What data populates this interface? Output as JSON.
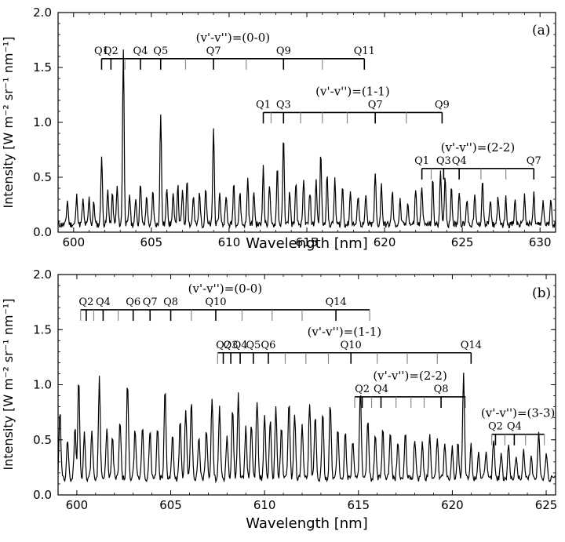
{
  "chart_data": [
    {
      "type": "line",
      "panel_label": "(a)",
      "xlabel": "Wavelength [nm]",
      "ylabel": "Intensity [W m⁻² sr⁻¹ nm⁻¹]",
      "xlim": [
        599,
        631
      ],
      "ylim": [
        0,
        2.0
      ],
      "x_ticks": [
        600,
        605,
        610,
        615,
        620,
        625,
        630
      ],
      "y_ticks": [
        0.0,
        0.5,
        1.0,
        1.5,
        2.0
      ],
      "y_tick_labels": [
        "0.0",
        "0.5",
        "1.0",
        "1.5",
        "2.0"
      ],
      "peaks": [
        [
          599.6,
          0.22
        ],
        [
          600.2,
          0.26
        ],
        [
          600.6,
          0.22
        ],
        [
          601.0,
          0.24
        ],
        [
          601.3,
          0.2
        ],
        [
          601.8,
          0.62
        ],
        [
          602.2,
          0.32
        ],
        [
          602.5,
          0.28
        ],
        [
          602.8,
          0.34
        ],
        [
          603.2,
          1.6
        ],
        [
          603.6,
          0.28
        ],
        [
          604.0,
          0.24
        ],
        [
          604.3,
          0.4
        ],
        [
          604.7,
          0.26
        ],
        [
          605.1,
          0.3
        ],
        [
          605.6,
          1.02
        ],
        [
          606.0,
          0.34
        ],
        [
          606.4,
          0.28
        ],
        [
          606.7,
          0.36
        ],
        [
          607.0,
          0.3
        ],
        [
          607.3,
          0.42
        ],
        [
          607.7,
          0.26
        ],
        [
          608.1,
          0.3
        ],
        [
          608.5,
          0.34
        ],
        [
          609.0,
          0.88
        ],
        [
          609.4,
          0.3
        ],
        [
          609.8,
          0.28
        ],
        [
          610.3,
          0.38
        ],
        [
          610.7,
          0.3
        ],
        [
          611.2,
          0.42
        ],
        [
          611.6,
          0.3
        ],
        [
          612.2,
          0.52
        ],
        [
          612.6,
          0.36
        ],
        [
          613.1,
          0.52
        ],
        [
          613.5,
          0.78
        ],
        [
          613.9,
          0.3
        ],
        [
          614.3,
          0.36
        ],
        [
          614.8,
          0.4
        ],
        [
          615.2,
          0.3
        ],
        [
          615.6,
          0.4
        ],
        [
          615.9,
          0.64
        ],
        [
          616.3,
          0.46
        ],
        [
          616.8,
          0.4
        ],
        [
          617.3,
          0.34
        ],
        [
          617.8,
          0.3
        ],
        [
          618.3,
          0.28
        ],
        [
          618.8,
          0.26
        ],
        [
          619.4,
          0.46
        ],
        [
          619.8,
          0.36
        ],
        [
          620.5,
          0.3
        ],
        [
          621.0,
          0.22
        ],
        [
          621.5,
          0.2
        ],
        [
          622.0,
          0.32
        ],
        [
          622.4,
          0.36
        ],
        [
          623.1,
          0.4
        ],
        [
          623.6,
          0.5
        ],
        [
          623.9,
          0.44
        ],
        [
          624.3,
          0.36
        ],
        [
          624.8,
          0.3
        ],
        [
          625.3,
          0.24
        ],
        [
          625.8,
          0.26
        ],
        [
          626.3,
          0.4
        ],
        [
          626.8,
          0.22
        ],
        [
          627.3,
          0.26
        ],
        [
          627.8,
          0.24
        ],
        [
          628.4,
          0.22
        ],
        [
          629.0,
          0.26
        ],
        [
          629.6,
          0.28
        ],
        [
          630.2,
          0.22
        ],
        [
          630.7,
          0.24
        ]
      ],
      "bands": [
        {
          "title": "(v'-v'')=(0-0)",
          "y": 1.58,
          "x_start": 601.8,
          "x_end": 618.7,
          "labels": [
            {
              "text": "Q1",
              "x": 601.8
            },
            {
              "text": "Q2",
              "x": 602.4
            },
            {
              "text": "Q4",
              "x": 604.3
            },
            {
              "text": "Q5",
              "x": 605.6
            },
            {
              "text": "Q7",
              "x": 609.0
            },
            {
              "text": "Q9",
              "x": 613.5
            },
            {
              "text": "Q11",
              "x": 618.7
            }
          ],
          "ticks": [
            601.8,
            602.4,
            603.3,
            604.3,
            605.6,
            607.2,
            609.0,
            611.1,
            613.5,
            616.0,
            618.7
          ]
        },
        {
          "title": "(v'-v'')=(1-1)",
          "y": 1.09,
          "x_start": 612.2,
          "x_end": 623.7,
          "labels": [
            {
              "text": "Q1",
              "x": 612.2
            },
            {
              "text": "Q3",
              "x": 613.5
            },
            {
              "text": "Q7",
              "x": 619.4
            },
            {
              "text": "Q9",
              "x": 623.7
            }
          ],
          "ticks": [
            612.2,
            612.7,
            613.5,
            614.6,
            616.0,
            617.6,
            619.4,
            621.4,
            623.7
          ]
        },
        {
          "title": "(v'-v'')=(2-2)",
          "y": 0.58,
          "x_start": 622.4,
          "x_end": 629.6,
          "labels": [
            {
              "text": "Q1",
              "x": 622.4
            },
            {
              "text": "Q3",
              "x": 623.8
            },
            {
              "text": "Q4",
              "x": 624.8
            },
            {
              "text": "Q7",
              "x": 629.6
            }
          ],
          "ticks": [
            622.4,
            623.0,
            623.8,
            624.8,
            626.2,
            627.8,
            629.6
          ]
        }
      ]
    },
    {
      "type": "line",
      "panel_label": "(b)",
      "xlabel": "Wavelength [nm]",
      "ylabel": "Intensity [W m⁻² sr⁻¹ nm⁻¹]",
      "xlim": [
        599,
        625.5
      ],
      "ylim": [
        0,
        2.0
      ],
      "x_ticks": [
        600,
        605,
        610,
        615,
        620,
        625
      ],
      "y_ticks": [
        0.0,
        0.5,
        1.0,
        1.5,
        2.0
      ],
      "y_tick_labels": [
        "0.0",
        "0.5",
        "1.0",
        "1.5",
        "2.0"
      ],
      "peaks": [
        [
          599.1,
          0.6
        ],
        [
          599.5,
          0.36
        ],
        [
          599.9,
          0.46
        ],
        [
          600.1,
          0.9
        ],
        [
          600.4,
          0.4
        ],
        [
          600.8,
          0.44
        ],
        [
          601.2,
          0.92
        ],
        [
          601.6,
          0.44
        ],
        [
          601.9,
          0.36
        ],
        [
          602.3,
          0.52
        ],
        [
          602.7,
          0.86
        ],
        [
          603.1,
          0.44
        ],
        [
          603.5,
          0.48
        ],
        [
          603.9,
          0.42
        ],
        [
          604.3,
          0.46
        ],
        [
          604.7,
          0.82
        ],
        [
          605.1,
          0.4
        ],
        [
          605.5,
          0.52
        ],
        [
          605.8,
          0.64
        ],
        [
          606.1,
          0.7
        ],
        [
          606.5,
          0.38
        ],
        [
          606.9,
          0.46
        ],
        [
          607.2,
          0.74
        ],
        [
          607.6,
          0.66
        ],
        [
          608.0,
          0.4
        ],
        [
          608.3,
          0.62
        ],
        [
          608.6,
          0.76
        ],
        [
          609.0,
          0.46
        ],
        [
          609.3,
          0.48
        ],
        [
          609.6,
          0.72
        ],
        [
          610.0,
          0.56
        ],
        [
          610.3,
          0.54
        ],
        [
          610.6,
          0.66
        ],
        [
          610.9,
          0.46
        ],
        [
          611.3,
          0.72
        ],
        [
          611.6,
          0.6
        ],
        [
          612.0,
          0.52
        ],
        [
          612.4,
          0.68
        ],
        [
          612.7,
          0.56
        ],
        [
          613.1,
          0.58
        ],
        [
          613.5,
          0.7
        ],
        [
          613.9,
          0.46
        ],
        [
          614.3,
          0.42
        ],
        [
          614.7,
          0.36
        ],
        [
          615.1,
          0.82
        ],
        [
          615.5,
          0.52
        ],
        [
          615.9,
          0.38
        ],
        [
          616.3,
          0.44
        ],
        [
          616.7,
          0.4
        ],
        [
          617.1,
          0.34
        ],
        [
          617.5,
          0.4
        ],
        [
          618.0,
          0.36
        ],
        [
          618.4,
          0.32
        ],
        [
          618.8,
          0.4
        ],
        [
          619.2,
          0.36
        ],
        [
          619.6,
          0.34
        ],
        [
          620.0,
          0.28
        ],
        [
          620.3,
          0.32
        ],
        [
          620.6,
          0.94
        ],
        [
          621.0,
          0.3
        ],
        [
          621.4,
          0.26
        ],
        [
          621.8,
          0.22
        ],
        [
          622.2,
          0.36
        ],
        [
          622.6,
          0.24
        ],
        [
          623.0,
          0.3
        ],
        [
          623.4,
          0.22
        ],
        [
          623.8,
          0.26
        ],
        [
          624.2,
          0.2
        ],
        [
          624.6,
          0.44
        ],
        [
          625.0,
          0.22
        ]
      ],
      "bands": [
        {
          "title": "(v'-v'')=(0-0)",
          "y": 1.68,
          "x_start": 600.2,
          "x_end": 615.6,
          "labels": [
            {
              "text": "Q2",
              "x": 600.5
            },
            {
              "text": "Q4",
              "x": 601.4
            },
            {
              "text": "Q6",
              "x": 603.0
            },
            {
              "text": "Q7",
              "x": 603.9
            },
            {
              "text": "Q8",
              "x": 605.0
            },
            {
              "text": "Q10",
              "x": 607.4
            },
            {
              "text": "Q14",
              "x": 613.8
            }
          ],
          "ticks": [
            600.2,
            600.5,
            600.9,
            601.4,
            602.2,
            603.0,
            603.9,
            605.0,
            606.1,
            607.4,
            608.8,
            610.4,
            612.0,
            613.8,
            615.6
          ]
        },
        {
          "title": "(v'-v'')=(1-1)",
          "y": 1.29,
          "x_start": 607.5,
          "x_end": 621.0,
          "labels": [
            {
              "text": "Q2",
              "x": 607.8
            },
            {
              "text": "Q4",
              "x": 608.7
            },
            {
              "text": "Q3",
              "x": 608.2
            },
            {
              "text": "Q5",
              "x": 609.4
            },
            {
              "text": "Q6",
              "x": 610.2
            },
            {
              "text": "Q10",
              "x": 614.6
            },
            {
              "text": "Q14",
              "x": 621.0
            }
          ],
          "ticks": [
            607.5,
            607.8,
            608.2,
            608.7,
            609.4,
            610.2,
            611.1,
            612.2,
            613.4,
            614.6,
            616.0,
            617.6,
            619.2,
            621.0
          ]
        },
        {
          "title": "(v'-v'')=(2-2)",
          "y": 0.89,
          "x_start": 614.8,
          "x_end": 620.7,
          "labels": [
            {
              "text": "Q2",
              "x": 615.2
            },
            {
              "text": "Q4",
              "x": 616.2
            },
            {
              "text": "Q8",
              "x": 619.4
            }
          ],
          "ticks": [
            614.8,
            615.2,
            615.7,
            616.2,
            617.0,
            617.8,
            618.5,
            619.4,
            620.7
          ]
        },
        {
          "title": "(v'-v'')=(3-3)",
          "y": 0.55,
          "x_start": 622.1,
          "x_end": 624.9,
          "labels": [
            {
              "text": "Q2",
              "x": 622.3
            },
            {
              "text": "Q4",
              "x": 623.3
            }
          ],
          "ticks": [
            622.1,
            622.3,
            622.8,
            623.3,
            623.9,
            624.9
          ]
        }
      ]
    }
  ]
}
